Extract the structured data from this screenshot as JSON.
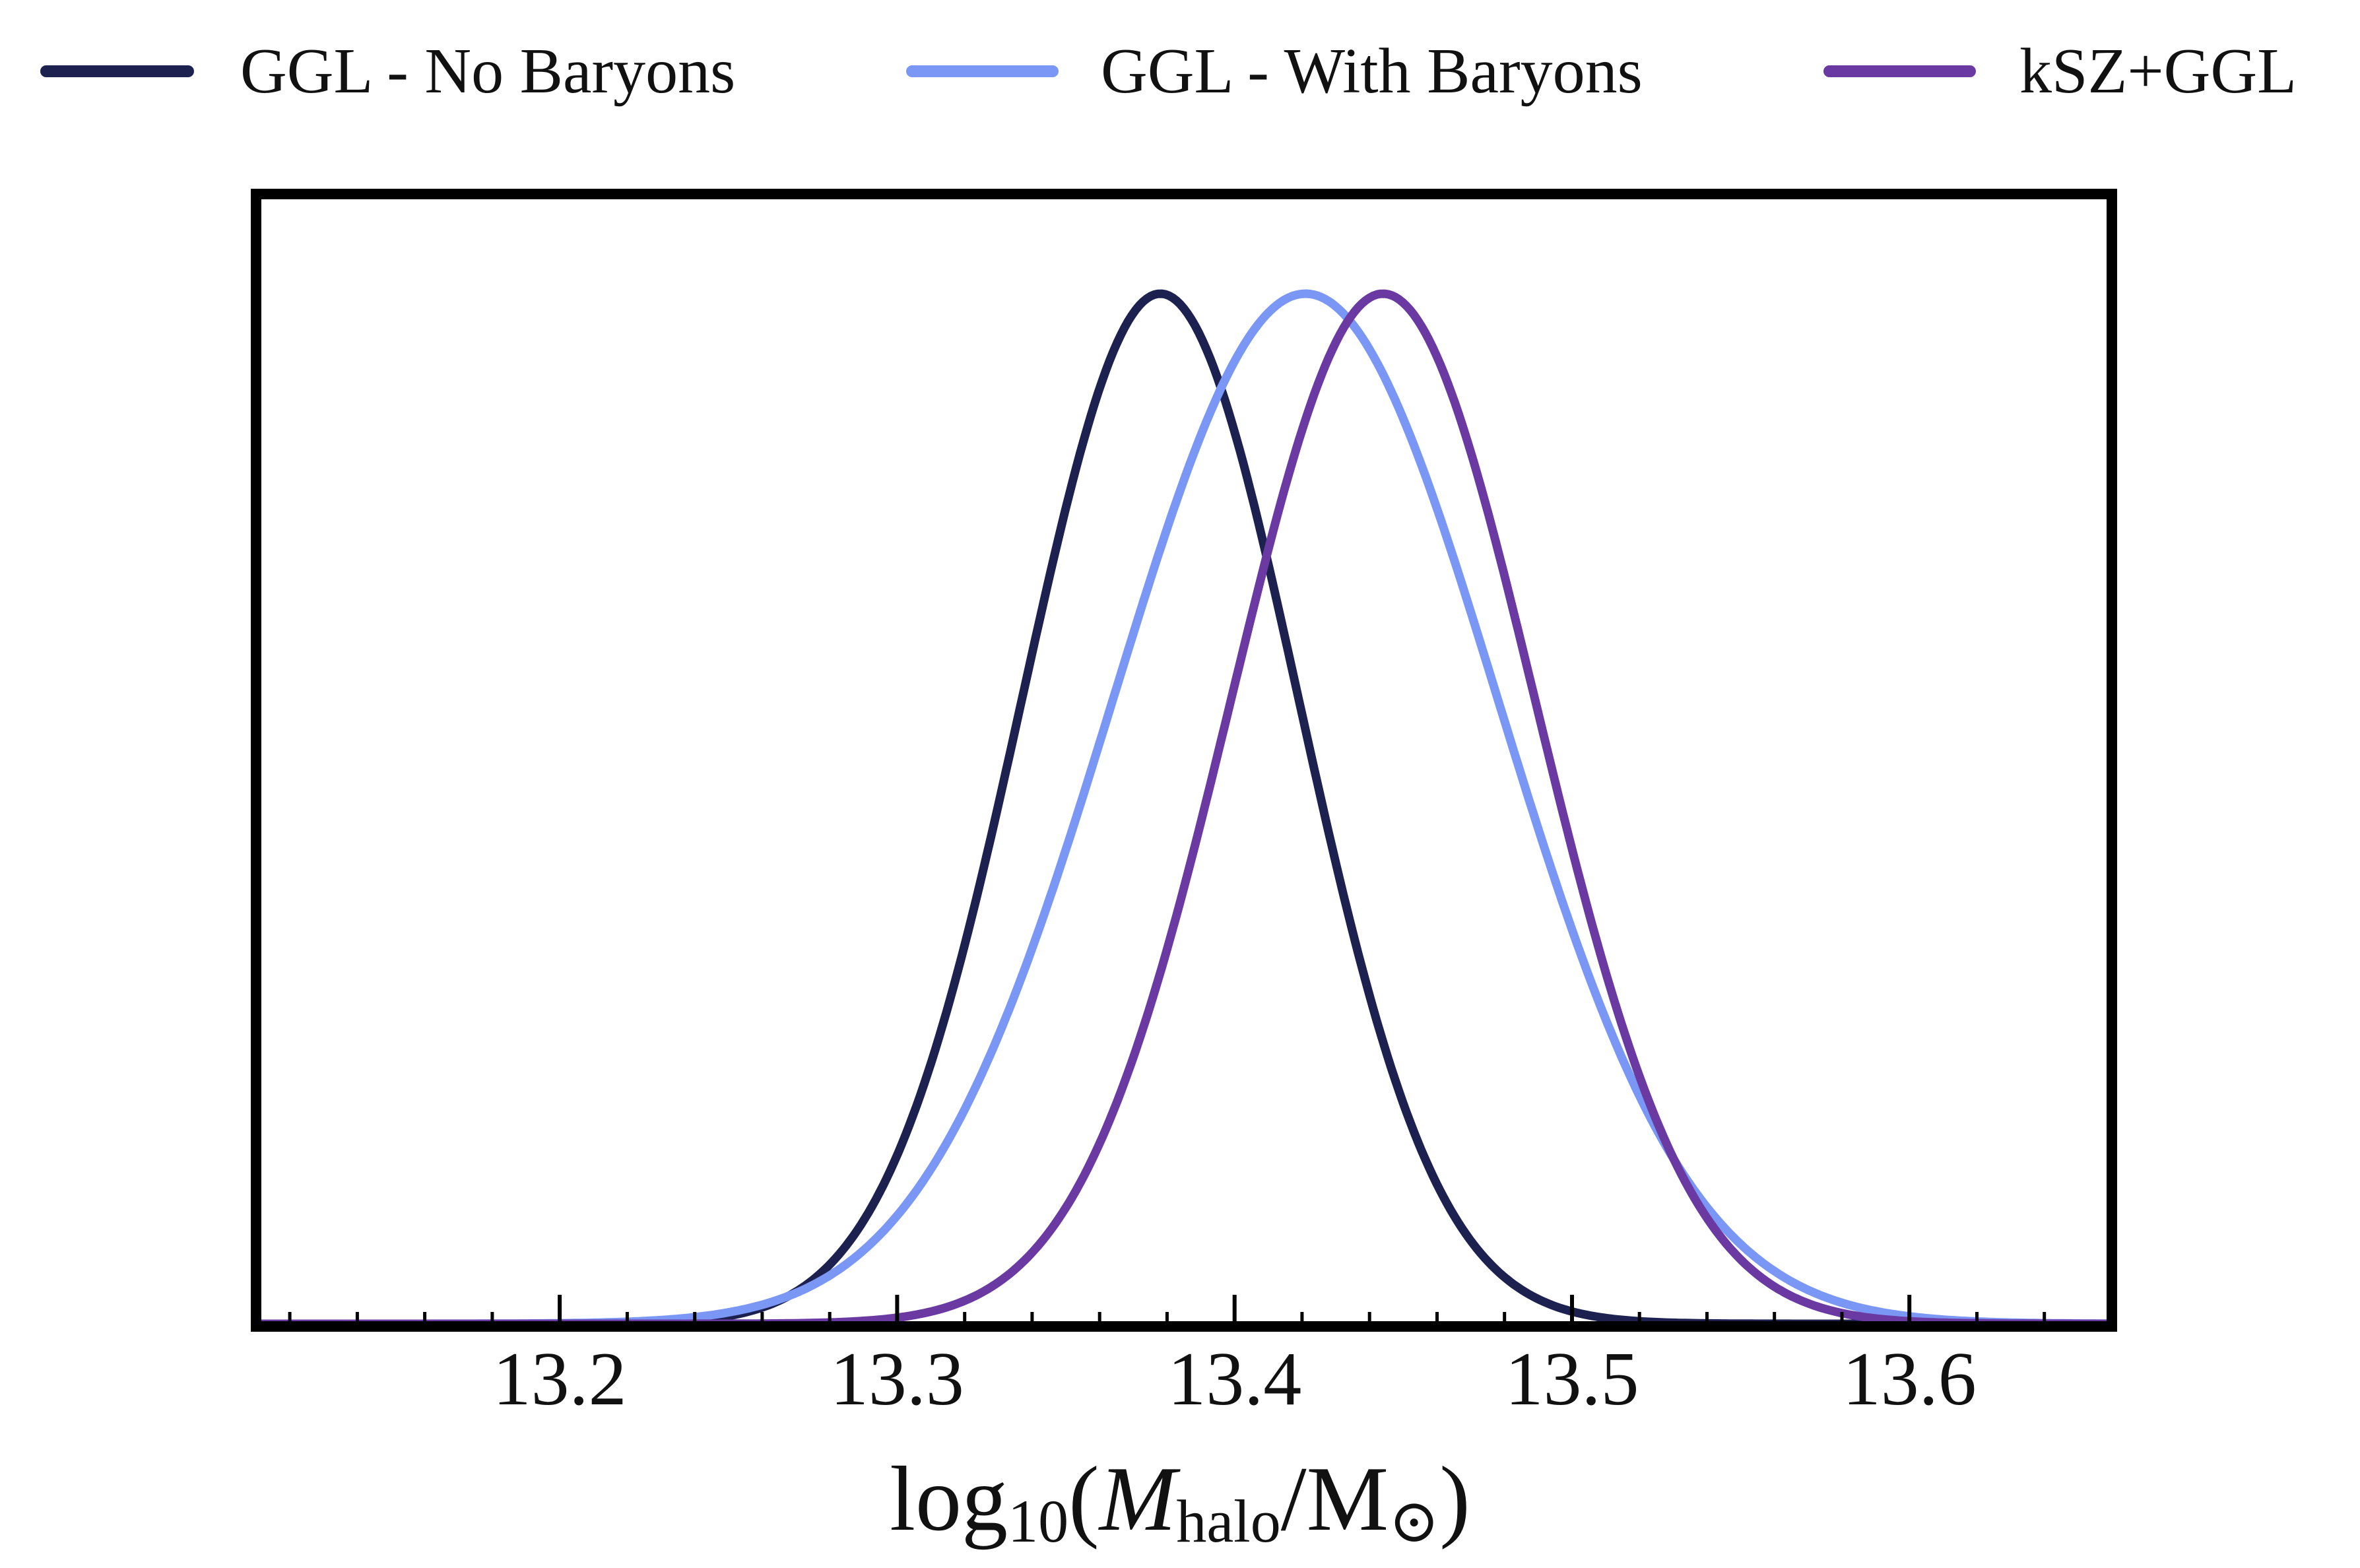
{
  "chart_data": {
    "type": "line",
    "title": "",
    "xlabel": {
      "prefix": "log",
      "prefix_sub": "10",
      "open": "(",
      "var": "M",
      "var_sub": "halo",
      "slash": "/M",
      "unit_sub": "⊙",
      "close": ")"
    },
    "ylabel": "",
    "xlim": [
      13.11,
      13.66
    ],
    "ylim": [
      0,
      1.0
    ],
    "xticks": [
      13.2,
      13.3,
      13.4,
      13.5,
      13.6
    ],
    "xtick_labels": [
      "13.2",
      "13.3",
      "13.4",
      "13.5",
      "13.6"
    ],
    "minor_tick_step": 0.02,
    "yticks_shown": false,
    "legend_position": "top, above plot",
    "series": [
      {
        "name": "GGL - No Baryons",
        "color": "#1c2150",
        "distribution": "gaussian",
        "mean": 13.378,
        "sigma": 0.041,
        "peak": 1.0
      },
      {
        "name": "GGL - With Baryons",
        "color": "#7b97f5",
        "distribution": "gaussian",
        "mean": 13.421,
        "sigma": 0.057,
        "peak": 1.0
      },
      {
        "name": "kSZ+GGL",
        "color": "#6a3aa2",
        "distribution": "gaussian",
        "mean": 13.444,
        "sigma": 0.045,
        "peak": 1.0
      }
    ]
  }
}
